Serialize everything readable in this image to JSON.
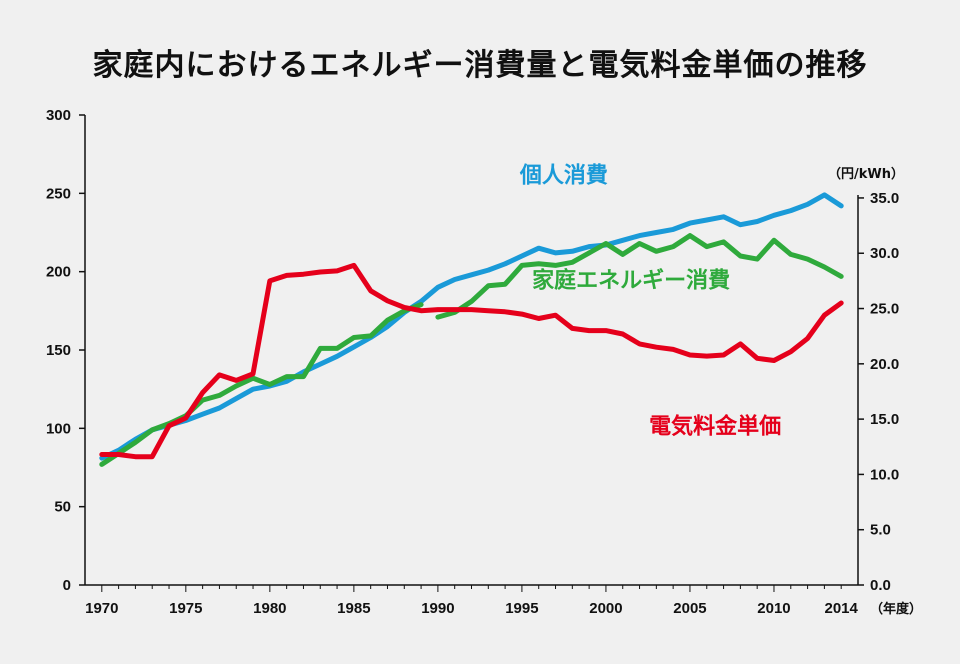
{
  "title": "家庭内におけるエネルギー消費量と電気料金単価の推移",
  "chart_data": {
    "type": "line",
    "title": "家庭内におけるエネルギー消費量と電気料金単価の推移",
    "xlabel": "（年度）",
    "ylabel": "",
    "y2label": "（円/kWh）",
    "xlim": [
      1969,
      2015
    ],
    "ylim": [
      0,
      300
    ],
    "y2lim": [
      0,
      42.5
    ],
    "x_ticks": [
      "1970",
      "1975",
      "1980",
      "1985",
      "1990",
      "1995",
      "2000",
      "2005",
      "2010",
      "2014"
    ],
    "x_tick_values": [
      1970,
      1975,
      1980,
      1985,
      1990,
      1995,
      2000,
      2005,
      2010,
      2014
    ],
    "y_ticks": [
      "0",
      "50",
      "100",
      "150",
      "200",
      "250",
      "300"
    ],
    "y_tick_values": [
      0,
      50,
      100,
      150,
      200,
      250,
      300
    ],
    "y2_ticks": [
      "0.0",
      "5.0",
      "10.0",
      "15.0",
      "20.0",
      "25.0",
      "30.0",
      "35.0"
    ],
    "y2_tick_values": [
      0,
      5,
      10,
      15,
      20,
      25,
      30,
      35
    ],
    "grid": false,
    "legend": "inline labels",
    "series": [
      {
        "name": "個人消費",
        "axis": "left",
        "color": "#1a9ad8",
        "label_year": 1997.5,
        "label_value": 257,
        "x": [
          1970,
          1971,
          1972,
          1973,
          1974,
          1975,
          1976,
          1977,
          1978,
          1979,
          1980,
          1981,
          1982,
          1983,
          1984,
          1985,
          1986,
          1987,
          1988,
          1989,
          1990,
          1991,
          1992,
          1993,
          1994,
          1995,
          1996,
          1997,
          1998,
          1999,
          2000,
          2001,
          2002,
          2003,
          2004,
          2005,
          2006,
          2007,
          2008,
          2009,
          2010,
          2011,
          2012,
          2013,
          2014
        ],
        "values": [
          81,
          86,
          93,
          99,
          102,
          105,
          109,
          113,
          119,
          125,
          127,
          130,
          136,
          141,
          146,
          152,
          158,
          165,
          174,
          181,
          190,
          195,
          198,
          201,
          205,
          210,
          215,
          212,
          213,
          216,
          217,
          220,
          223,
          225,
          227,
          231,
          233,
          235,
          230,
          232,
          236,
          239,
          243,
          249,
          242
        ]
      },
      {
        "name": "家庭エネルギー消費",
        "axis": "left",
        "color": "#2faa3c",
        "label_year": 2001.5,
        "label_value": 190,
        "segments": [
          {
            "x": [
              1970,
              1971,
              1972,
              1973,
              1974,
              1975,
              1976,
              1977,
              1978,
              1979,
              1980,
              1981,
              1982,
              1983,
              1984,
              1985,
              1986,
              1987,
              1988,
              1989
            ],
            "values": [
              77,
              84,
              91,
              99,
              103,
              108,
              118,
              121,
              127,
              132,
              128,
              133,
              133,
              151,
              151,
              158,
              159,
              169,
              175,
              179
            ]
          },
          {
            "x": [
              1990,
              1991,
              1992,
              1993,
              1994,
              1995,
              1996,
              1997,
              1998,
              1999,
              2000,
              2001,
              2002,
              2003,
              2004,
              2005,
              2006,
              2007,
              2008,
              2009,
              2010,
              2011,
              2012,
              2013,
              2014
            ],
            "values": [
              171,
              174,
              181,
              191,
              192,
              204,
              205,
              204,
              206,
              212,
              218,
              211,
              218,
              213,
              216,
              223,
              216,
              219,
              210,
              208,
              220,
              211,
              208,
              203,
              197
            ]
          }
        ]
      },
      {
        "name": "電気料金単価",
        "axis": "right",
        "unit": "円/kWh",
        "color": "#e5001b",
        "label_year": 2006.5,
        "label_value": 13.7,
        "x": [
          1970,
          1971,
          1972,
          1973,
          1974,
          1975,
          1976,
          1977,
          1978,
          1979,
          1980,
          1981,
          1982,
          1983,
          1984,
          1985,
          1986,
          1987,
          1988,
          1989,
          1990,
          1991,
          1992,
          1993,
          1994,
          1995,
          1996,
          1997,
          1998,
          1999,
          2000,
          2001,
          2002,
          2003,
          2004,
          2005,
          2006,
          2007,
          2008,
          2009,
          2010,
          2011,
          2012,
          2013,
          2014
        ],
        "values": [
          11.8,
          11.8,
          11.6,
          11.6,
          14.4,
          15.1,
          17.4,
          19.0,
          18.5,
          19.1,
          27.5,
          28.0,
          28.1,
          28.3,
          28.4,
          28.9,
          26.6,
          25.7,
          25.1,
          24.8,
          24.9,
          24.9,
          24.9,
          24.8,
          24.7,
          24.5,
          24.1,
          24.4,
          23.2,
          23.0,
          23.0,
          22.7,
          21.8,
          21.5,
          21.3,
          20.8,
          20.7,
          20.8,
          21.8,
          20.5,
          20.3,
          21.1,
          22.3,
          24.4,
          25.5
        ]
      }
    ]
  }
}
